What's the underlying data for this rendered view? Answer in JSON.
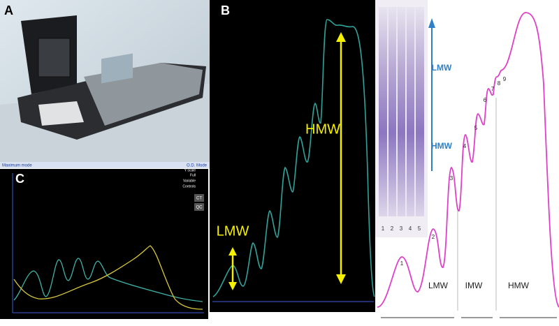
{
  "panels": {
    "a": {
      "label": "A"
    },
    "b": {
      "label": "B",
      "annotations": [
        "LMW",
        "HMW"
      ]
    },
    "c": {
      "label": "C",
      "header_left": "Maximum mode",
      "header_right": "O.D. Mode",
      "controls": {
        "title": "Y scale",
        "options": [
          "Full",
          "Variable",
          "Controls"
        ],
        "buttons": [
          "CT",
          "QC"
        ]
      }
    },
    "gel": {
      "labels": [
        "LMW",
        "HMW"
      ],
      "lanes": [
        "1",
        "2",
        "3",
        "4",
        "5"
      ]
    },
    "profile": {
      "peaks": [
        "1",
        "2",
        "3",
        "4",
        "5",
        "6",
        "7",
        "8",
        "9"
      ],
      "regions": [
        "LMW",
        "IMW",
        "HMW"
      ]
    }
  }
}
